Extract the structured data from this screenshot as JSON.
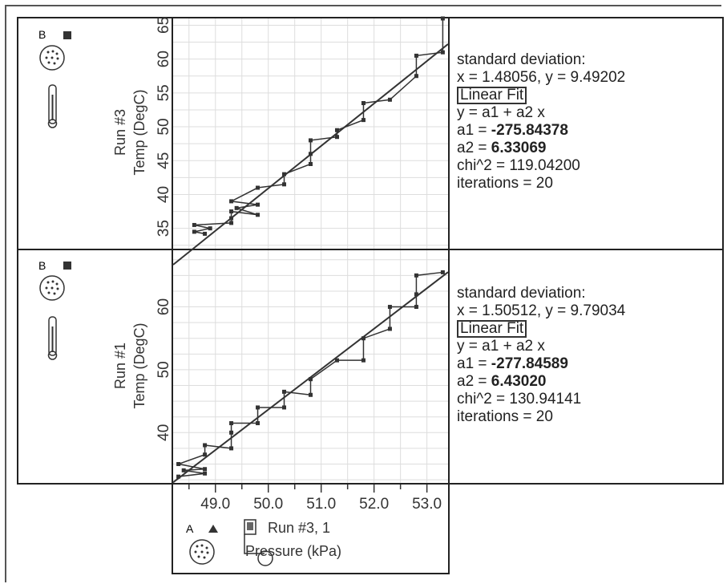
{
  "colors": {
    "line": "#333333",
    "grid": "#dddddd",
    "border": "#222222"
  },
  "icons": {
    "sensor_top": {
      "letter": "B",
      "name": "temperature-probe-sensor-icon"
    },
    "sensor_bottom": {
      "letter": "B",
      "name": "temperature-probe-sensor-icon"
    },
    "sensor_x": {
      "letter": "A",
      "name": "pressure-sensor-icon"
    }
  },
  "chart_data": [
    {
      "type": "scatter",
      "ylabel_run": "Run #3",
      "ylabel": "Temp (DegC)",
      "xlim": [
        48.2,
        53.4
      ],
      "ylim": [
        32,
        66
      ],
      "y_ticks": [
        35,
        40,
        45,
        50,
        55,
        60,
        65
      ],
      "points": [
        [
          48.8,
          34.2
        ],
        [
          48.6,
          34.5
        ],
        [
          48.9,
          35.0
        ],
        [
          48.6,
          35.5
        ],
        [
          49.3,
          35.8
        ],
        [
          49.3,
          36.5
        ],
        [
          49.3,
          37.5
        ],
        [
          49.8,
          37.0
        ],
        [
          49.4,
          38.0
        ],
        [
          49.8,
          38.5
        ],
        [
          49.3,
          39.0
        ],
        [
          49.8,
          41.0
        ],
        [
          50.3,
          41.5
        ],
        [
          50.3,
          43.0
        ],
        [
          50.8,
          44.5
        ],
        [
          50.8,
          46.0
        ],
        [
          50.8,
          48.0
        ],
        [
          51.3,
          48.5
        ],
        [
          51.3,
          49.5
        ],
        [
          51.8,
          51.0
        ],
        [
          51.8,
          53.5
        ],
        [
          52.3,
          54.0
        ],
        [
          52.8,
          57.5
        ],
        [
          52.8,
          60.5
        ],
        [
          53.3,
          61.0
        ],
        [
          53.3,
          66.0
        ]
      ],
      "fit": {
        "a1": -275.84378,
        "a2": 6.33069
      },
      "stats": {
        "sd_title": "standard deviation:",
        "sd_values": "x = 1.48056, y = 9.49202",
        "fit_title": "Linear Fit",
        "equation": "y = a1 + a2 x",
        "a1_label": "a1 = ",
        "a1_value": "-275.84378",
        "a2_label": "a2 = ",
        "a2_value": "6.33069",
        "chi": "chi^2 = 119.04200",
        "iterations": "iterations = 20"
      }
    },
    {
      "type": "scatter",
      "ylabel_run": "Run #1",
      "ylabel": "Temp (DegC)",
      "xlim": [
        48.2,
        53.4
      ],
      "ylim": [
        32,
        69
      ],
      "y_ticks": [
        40,
        50,
        60
      ],
      "points": [
        [
          48.3,
          33.0
        ],
        [
          48.8,
          33.5
        ],
        [
          48.4,
          34.0
        ],
        [
          48.8,
          34.2
        ],
        [
          48.3,
          35.0
        ],
        [
          48.8,
          36.5
        ],
        [
          48.8,
          38.0
        ],
        [
          49.3,
          37.5
        ],
        [
          49.3,
          40.0
        ],
        [
          49.3,
          41.5
        ],
        [
          49.8,
          41.5
        ],
        [
          49.8,
          44.0
        ],
        [
          50.3,
          44.0
        ],
        [
          50.3,
          46.5
        ],
        [
          50.8,
          46.0
        ],
        [
          50.8,
          48.5
        ],
        [
          51.3,
          51.5
        ],
        [
          51.8,
          51.5
        ],
        [
          51.8,
          55.0
        ],
        [
          52.3,
          56.5
        ],
        [
          52.3,
          60.0
        ],
        [
          52.8,
          60.0
        ],
        [
          52.8,
          62.0
        ],
        [
          52.8,
          65.0
        ],
        [
          53.3,
          65.5
        ]
      ],
      "fit": {
        "a1": -277.84589,
        "a2": 6.4302
      },
      "stats": {
        "sd_title": "standard deviation:",
        "sd_values": "x = 1.50512, y = 9.79034",
        "fit_title": "Linear Fit",
        "equation": "y = a1 + a2 x",
        "a1_label": "a1 = ",
        "a1_value": "-277.84589",
        "a2_label": "a2 = ",
        "a2_value": "6.43020",
        "chi": "chi^2 = 130.94141",
        "iterations": "iterations = 20"
      }
    }
  ],
  "x_axis": {
    "run_label": "Run #3, 1",
    "xlabel": "Pressure (kPa)",
    "x_ticks": [
      "49.0",
      "50.0",
      "51.0",
      "52.0",
      "53.0"
    ]
  }
}
